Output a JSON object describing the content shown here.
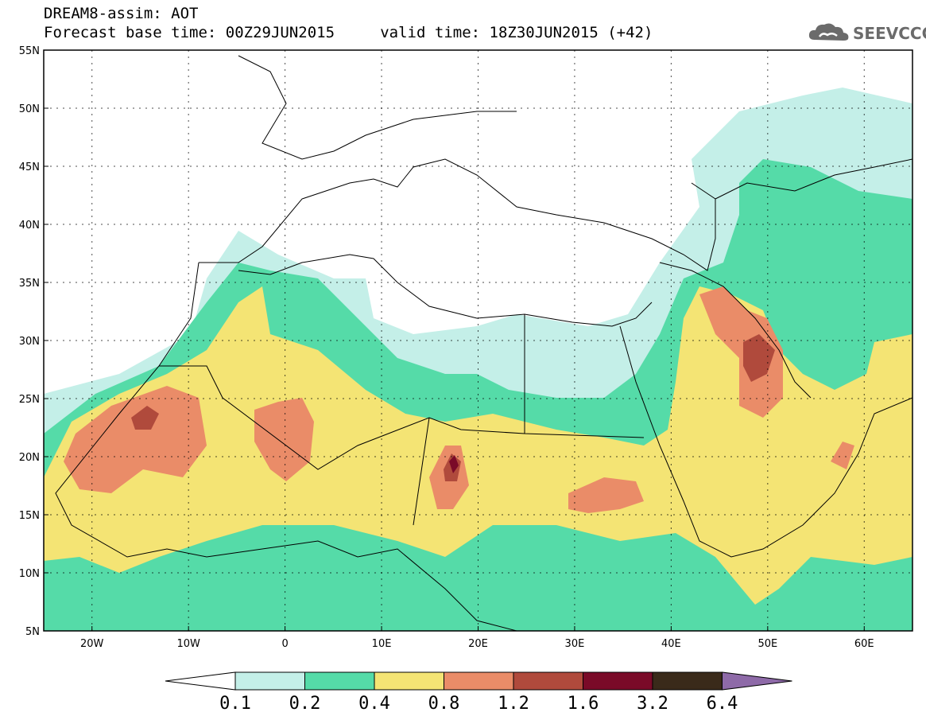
{
  "header": {
    "line1": "DREAM8-assim: AOT",
    "line2": "Forecast base time: 00Z29JUN2015     valid time: 18Z30JUN2015 (+42)"
  },
  "logo": {
    "text": "SEEVCCC",
    "icon": "cloud-icon"
  },
  "map": {
    "lon_range": [
      -25,
      65
    ],
    "lat_range": [
      5,
      55
    ],
    "lon_ticks": [
      {
        "value": -20,
        "label": "20W"
      },
      {
        "value": -10,
        "label": "10W"
      },
      {
        "value": 0,
        "label": "0"
      },
      {
        "value": 10,
        "label": "10E"
      },
      {
        "value": 20,
        "label": "20E"
      },
      {
        "value": 30,
        "label": "30E"
      },
      {
        "value": 40,
        "label": "40E"
      },
      {
        "value": 50,
        "label": "50E"
      },
      {
        "value": 60,
        "label": "60E"
      }
    ],
    "lat_ticks": [
      {
        "value": 55,
        "label": "55N"
      },
      {
        "value": 50,
        "label": "50N"
      },
      {
        "value": 45,
        "label": "45N"
      },
      {
        "value": 40,
        "label": "40N"
      },
      {
        "value": 35,
        "label": "35N"
      },
      {
        "value": 30,
        "label": "30N"
      },
      {
        "value": 25,
        "label": "25N"
      },
      {
        "value": 20,
        "label": "20N"
      },
      {
        "value": 15,
        "label": "15N"
      },
      {
        "value": 10,
        "label": "10N"
      },
      {
        "value": 5,
        "label": "5N"
      }
    ],
    "grid": "dotted"
  },
  "colorbar": {
    "under_color": "#ffffff",
    "over_color": "#8e6aa8",
    "colors": [
      "#c4efe8",
      "#55dba8",
      "#f4e474",
      "#ea8c68",
      "#b04a3c",
      "#7a0a28",
      "#3a2a1a"
    ],
    "labels": [
      "0.1",
      "0.2",
      "0.4",
      "0.8",
      "1.2",
      "1.6",
      "3.2",
      "6.4"
    ]
  }
}
